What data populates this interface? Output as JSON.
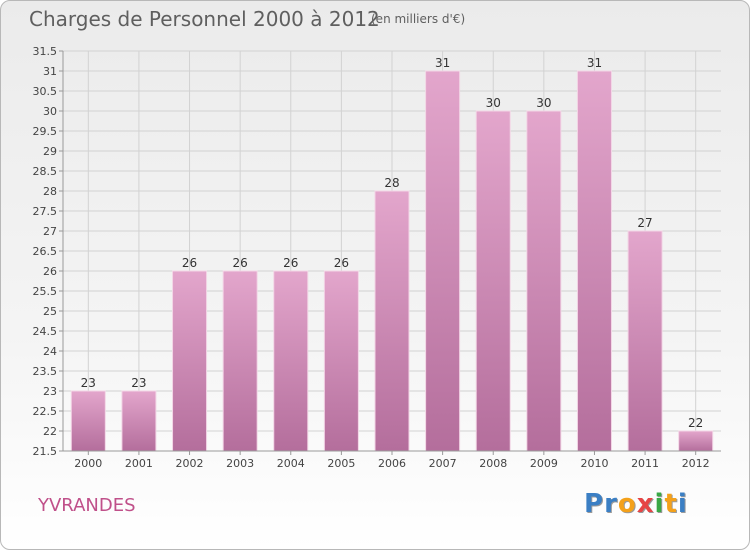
{
  "header": {
    "title": "Charges de Personnel 2000 à 2012",
    "subtitle": "(en milliers d'€)"
  },
  "footer": {
    "commune": "YVRANDES",
    "logo": [
      "P",
      "r",
      "o",
      "x",
      "i",
      "t",
      "i"
    ]
  },
  "colors": {
    "bar_top": "#e3a6cc",
    "bar_bottom": "#b46e9c",
    "commune": "#c0508a",
    "logo_letters": [
      "#3b7fc4",
      "#3b7fc4",
      "#f4a11a",
      "#e64545",
      "#3aa845",
      "#f4a11a",
      "#3b7fc4"
    ]
  },
  "chart_data": {
    "type": "bar",
    "categories": [
      "2000",
      "2001",
      "2002",
      "2003",
      "2004",
      "2005",
      "2006",
      "2007",
      "2008",
      "2009",
      "2010",
      "2011",
      "2012"
    ],
    "values": [
      23,
      23,
      26,
      26,
      26,
      26,
      28,
      31,
      30,
      30,
      31,
      27,
      22
    ],
    "value_labels": [
      "23",
      "23",
      "26",
      "26",
      "26",
      "26",
      "28",
      "31",
      "30",
      "30",
      "31",
      "27",
      "22"
    ],
    "ylim": [
      21.5,
      31.5
    ],
    "yticks": [
      "21.5",
      "22",
      "22.5",
      "23",
      "23.5",
      "24",
      "24.5",
      "25",
      "25.5",
      "26",
      "26.5",
      "27",
      "27.5",
      "28",
      "28.5",
      "29",
      "29.5",
      "30",
      "30.5",
      "31",
      "31.5"
    ],
    "grid": true
  }
}
